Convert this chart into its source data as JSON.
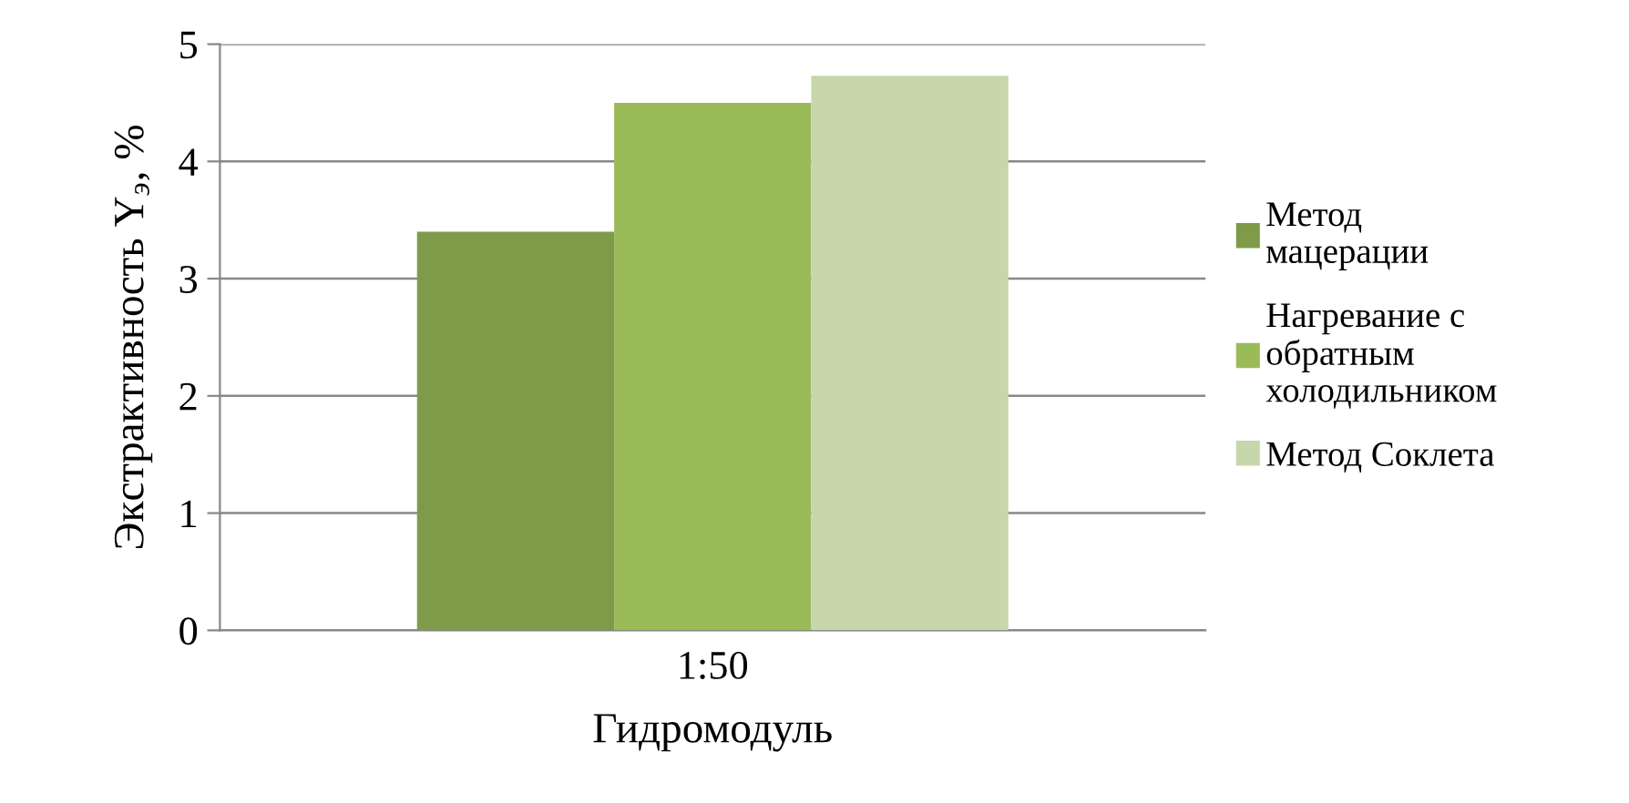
{
  "chart_data": {
    "type": "bar",
    "xlabel": "Гидромодуль",
    "ylabel": "Экстрактивность Y$_{э}$, %",
    "categories": [
      "1:50"
    ],
    "series": [
      {
        "name": "Метод\nмацерации",
        "color": "#7f9b4a",
        "values": [
          3.4
        ]
      },
      {
        "name": "Нагревание с\nобратным\nхолодильником",
        "color": "#9bbb59",
        "values": [
          4.5
        ]
      },
      {
        "name": "Метод Соклета",
        "color": "#c8d7ab",
        "values": [
          4.73
        ]
      }
    ],
    "ylim": [
      0,
      5
    ],
    "yticks": [
      0,
      1,
      2,
      3,
      4,
      5
    ],
    "grid": "y",
    "legend": "right"
  }
}
